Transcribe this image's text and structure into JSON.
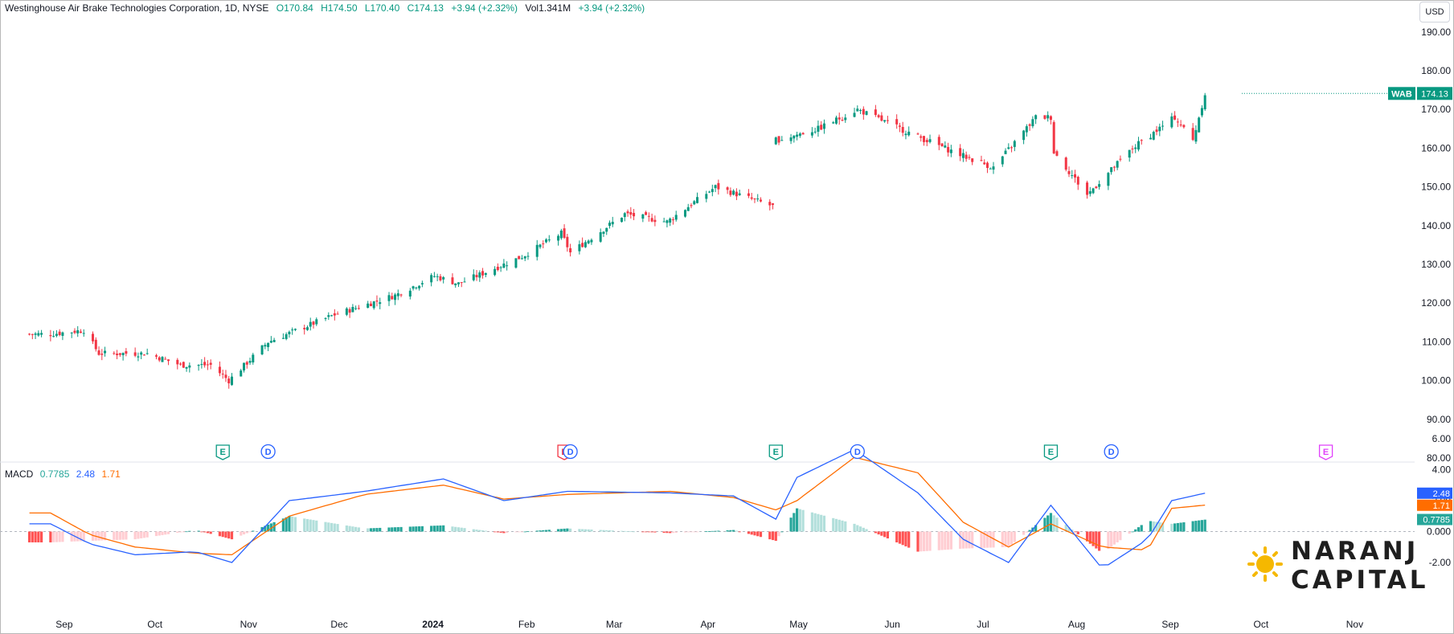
{
  "header": {
    "symbol_name": "Westinghouse Air Brake Technologies Corporation, 1D, NYSE",
    "open": "O170.84",
    "high": "H174.50",
    "low": "L170.40",
    "close": "C174.13",
    "change": "+3.94 (+2.32%)",
    "volume": "Vol1.341M",
    "vol_change": "+3.94 (+2.32%)"
  },
  "currency": "USD",
  "ticker_tag": "WAB",
  "last_price": "174.13",
  "price_axis": [
    "190.00",
    "180.00",
    "170.00",
    "160.00",
    "150.00",
    "140.00",
    "130.00",
    "120.00",
    "110.00",
    "100.00",
    "90.00",
    "80.00"
  ],
  "macd": {
    "label": "MACD",
    "histogram_value": "0.7785",
    "macd_value": "2.48",
    "signal_value": "1.71",
    "axis": [
      "6.00",
      "4.00",
      "2.00",
      "0.000",
      "-2.00"
    ]
  },
  "time_axis": [
    "Sep",
    "Oct",
    "Nov",
    "Dec",
    "2024",
    "Feb",
    "Mar",
    "Apr",
    "May",
    "Jun",
    "Jul",
    "Aug",
    "Sep",
    "Oct",
    "Nov"
  ],
  "events": [
    {
      "type": "E",
      "month_pos": "2023-10-24",
      "color": "#089981"
    },
    {
      "type": "D",
      "month_pos": "2023-11-08",
      "color": "#2962ff"
    },
    {
      "type": "E",
      "month_pos": "2024-02-14",
      "color": "#f23645"
    },
    {
      "type": "D",
      "month_pos": "2024-02-16",
      "color": "#2962ff"
    },
    {
      "type": "E",
      "month_pos": "2024-04-24",
      "color": "#089981"
    },
    {
      "type": "D",
      "month_pos": "2024-05-21",
      "color": "#2962ff"
    },
    {
      "type": "E",
      "month_pos": "2024-07-24",
      "color": "#089981"
    },
    {
      "type": "D",
      "month_pos": "2024-08-13",
      "color": "#2962ff"
    },
    {
      "type": "E",
      "month_pos": "2024-10-23",
      "color": "#e040fb"
    }
  ],
  "colors": {
    "up": "#089981",
    "down": "#f23645",
    "macd_line": "#2962ff",
    "signal_line": "#ff6d00",
    "hist_up_strong": "#26a69a",
    "hist_up_weak": "#b2dfdb",
    "hist_down_strong": "#ff5252",
    "hist_down_weak": "#ffcdd2"
  },
  "logo": {
    "line1": "NARANJ",
    "line2": "CAPITAL"
  },
  "chart_data": {
    "type": "candlestick",
    "title": "Westinghouse Air Brake Technologies Corporation, 1D, NYSE",
    "ylim": [
      80,
      190
    ],
    "price_keypoints": [
      {
        "date": "2023-08-28",
        "close": 112
      },
      {
        "date": "2023-09-08",
        "close": 113
      },
      {
        "date": "2023-09-13",
        "close": 107
      },
      {
        "date": "2023-09-29",
        "close": 107
      },
      {
        "date": "2023-10-10",
        "close": 104
      },
      {
        "date": "2023-10-20",
        "close": 104
      },
      {
        "date": "2023-10-26",
        "close": 100
      },
      {
        "date": "2023-11-08",
        "close": 110
      },
      {
        "date": "2023-11-30",
        "close": 117
      },
      {
        "date": "2023-12-20",
        "close": 122
      },
      {
        "date": "2024-01-02",
        "close": 127
      },
      {
        "date": "2024-01-10",
        "close": 125
      },
      {
        "date": "2024-01-31",
        "close": 132
      },
      {
        "date": "2024-02-13",
        "close": 138
      },
      {
        "date": "2024-02-16",
        "close": 133
      },
      {
        "date": "2024-03-05",
        "close": 143
      },
      {
        "date": "2024-03-19",
        "close": 141
      },
      {
        "date": "2024-04-04",
        "close": 150
      },
      {
        "date": "2024-04-23",
        "close": 145
      },
      {
        "date": "2024-04-24",
        "close": 162
      },
      {
        "date": "2024-05-08",
        "close": 165
      },
      {
        "date": "2024-05-21",
        "close": 170
      },
      {
        "date": "2024-06-10",
        "close": 163
      },
      {
        "date": "2024-06-25",
        "close": 158
      },
      {
        "date": "2024-07-05",
        "close": 155
      },
      {
        "date": "2024-07-19",
        "close": 168
      },
      {
        "date": "2024-07-24",
        "close": 168
      },
      {
        "date": "2024-07-25",
        "close": 159
      },
      {
        "date": "2024-08-05",
        "close": 148
      },
      {
        "date": "2024-08-20",
        "close": 160
      },
      {
        "date": "2024-09-03",
        "close": 168
      },
      {
        "date": "2024-09-09",
        "close": 162
      },
      {
        "date": "2024-09-13",
        "close": 174.13
      }
    ],
    "macd_keypoints": [
      {
        "date": "2023-08-28",
        "macd": 0.5,
        "signal": 1.2
      },
      {
        "date": "2023-09-10",
        "macd": -0.8,
        "signal": -0.2
      },
      {
        "date": "2023-09-25",
        "macd": -1.5,
        "signal": -1.0
      },
      {
        "date": "2023-10-15",
        "macd": -1.3,
        "signal": -1.4
      },
      {
        "date": "2023-10-27",
        "macd": -2.0,
        "signal": -1.5
      },
      {
        "date": "2023-11-15",
        "macd": 2.0,
        "signal": 1.0
      },
      {
        "date": "2023-12-10",
        "macd": 2.6,
        "signal": 2.4
      },
      {
        "date": "2024-01-05",
        "macd": 3.4,
        "signal": 3.0
      },
      {
        "date": "2024-01-25",
        "macd": 2.0,
        "signal": 2.1
      },
      {
        "date": "2024-02-15",
        "macd": 2.6,
        "signal": 2.4
      },
      {
        "date": "2024-03-20",
        "macd": 2.5,
        "signal": 2.6
      },
      {
        "date": "2024-04-10",
        "macd": 2.3,
        "signal": 2.2
      },
      {
        "date": "2024-04-24",
        "macd": 0.8,
        "signal": 1.4
      },
      {
        "date": "2024-05-01",
        "macd": 3.5,
        "signal": 2.0
      },
      {
        "date": "2024-05-20",
        "macd": 5.3,
        "signal": 4.8
      },
      {
        "date": "2024-06-10",
        "macd": 2.5,
        "signal": 3.8
      },
      {
        "date": "2024-06-25",
        "macd": -0.5,
        "signal": 0.6
      },
      {
        "date": "2024-07-10",
        "macd": -2.0,
        "signal": -1.0
      },
      {
        "date": "2024-07-24",
        "macd": 1.7,
        "signal": 0.5
      },
      {
        "date": "2024-08-10",
        "macd": -2.4,
        "signal": -1.0
      },
      {
        "date": "2024-08-25",
        "macd": -0.5,
        "signal": -1.2
      },
      {
        "date": "2024-09-02",
        "macd": 2.0,
        "signal": 1.5
      },
      {
        "date": "2024-09-13",
        "macd": 2.48,
        "signal": 1.71
      }
    ],
    "macd_ylim": [
      -3,
      6.5
    ]
  }
}
